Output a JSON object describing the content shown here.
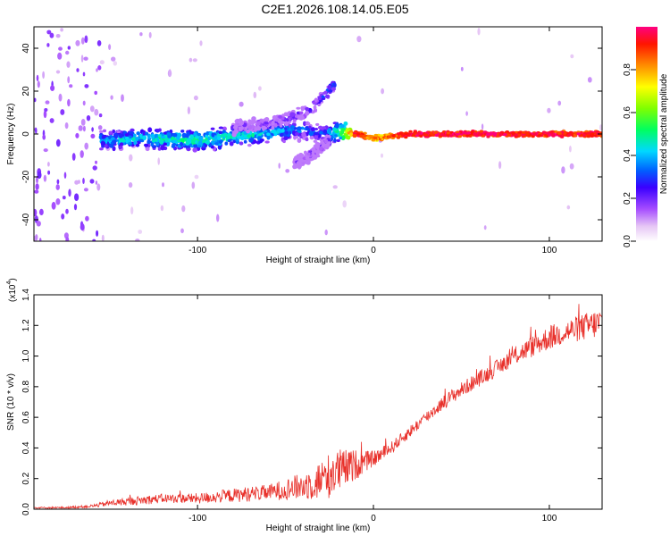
{
  "title": "C2E1.2026.108.14.05.E05",
  "chart_data": [
    {
      "type": "heatmap",
      "title": "C2E1.2026.108.14.05.E05",
      "xlabel": "Height of straight line (km)",
      "ylabel": "Frequency (Hz)",
      "xlim": [
        -193,
        130
      ],
      "ylim": [
        -50,
        50
      ],
      "xticks": [
        -100,
        0,
        100
      ],
      "xtick_labels": [
        "-100",
        "0",
        "100"
      ],
      "yticks": [
        -40,
        -20,
        0,
        20,
        40
      ],
      "ytick_labels": [
        "-40",
        "-20",
        "0",
        "20",
        "40"
      ],
      "colorbar": {
        "label": "Normalized spectral amplitude",
        "range": [
          0,
          1
        ],
        "ticks": [
          0.0,
          0.2,
          0.4,
          0.6,
          0.8
        ],
        "tick_labels": [
          "0.0",
          "0.2",
          "0.4",
          "0.6",
          "0.8"
        ]
      },
      "description_series": [
        {
          "name": "main band",
          "x": [
            -155,
            -130,
            -100,
            -75,
            -55,
            -40,
            -30,
            -20,
            -10,
            0,
            20,
            60,
            100,
            130
          ],
          "freq_center": [
            -3,
            -2,
            -3,
            -1,
            1,
            2,
            0,
            1,
            0,
            -2,
            0,
            0,
            0,
            0
          ],
          "amplitude": [
            0.4,
            0.45,
            0.5,
            0.45,
            0.4,
            0.35,
            0.3,
            0.5,
            0.95,
            0.8,
            0.98,
            0.97,
            0.96,
            0.95
          ]
        },
        {
          "name": "rising branch",
          "x": [
            -80,
            -60,
            -45,
            -35,
            -28,
            -22
          ],
          "freq_center": [
            3,
            5,
            8,
            12,
            18,
            24
          ],
          "amplitude": [
            0.15,
            0.18,
            0.2,
            0.22,
            0.25,
            0.3
          ]
        },
        {
          "name": "falling branch",
          "x": [
            -45,
            -40,
            -35,
            -30,
            -25
          ],
          "freq_center": [
            -14,
            -12,
            -9,
            -6,
            -3
          ],
          "amplitude": [
            0.15,
            0.15,
            0.18,
            0.2,
            0.2
          ]
        }
      ]
    },
    {
      "type": "line",
      "title": "",
      "xlabel": "Height of straight line (km)",
      "ylabel": "SNR (10 * v/v)",
      "y_multiplier_label": "(x10",
      "y_multiplier_exp": "4",
      "y_multiplier_close": ")",
      "xlim": [
        -193,
        130
      ],
      "ylim": [
        0,
        1.4
      ],
      "xticks": [
        -100,
        0,
        100
      ],
      "xtick_labels": [
        "-100",
        "0",
        "100"
      ],
      "yticks": [
        0,
        0.2,
        0.4,
        0.6,
        0.8,
        1.0,
        1.2,
        1.4
      ],
      "ytick_labels": [
        "0.0",
        "0.2",
        "0.4",
        "0.6",
        "0.8",
        "1.0",
        "1.2",
        "1.4"
      ],
      "color": "#e8302a",
      "series": [
        {
          "name": "SNR",
          "x": [
            -193,
            -175,
            -160,
            -150,
            -140,
            -130,
            -120,
            -110,
            -100,
            -90,
            -80,
            -70,
            -60,
            -50,
            -40,
            -35,
            -30,
            -25,
            -20,
            -15,
            -10,
            -5,
            0,
            5,
            10,
            20,
            30,
            40,
            50,
            60,
            70,
            80,
            90,
            100,
            110,
            120,
            130
          ],
          "y": [
            0.01,
            0.01,
            0.02,
            0.04,
            0.05,
            0.06,
            0.07,
            0.07,
            0.07,
            0.08,
            0.09,
            0.1,
            0.11,
            0.13,
            0.15,
            0.17,
            0.19,
            0.22,
            0.25,
            0.27,
            0.29,
            0.31,
            0.33,
            0.36,
            0.4,
            0.5,
            0.6,
            0.7,
            0.78,
            0.85,
            0.92,
            1.0,
            1.06,
            1.12,
            1.16,
            1.19,
            1.22
          ],
          "noise": [
            0.005,
            0.006,
            0.01,
            0.02,
            0.025,
            0.03,
            0.03,
            0.03,
            0.035,
            0.04,
            0.045,
            0.05,
            0.05,
            0.07,
            0.09,
            0.11,
            0.13,
            0.15,
            0.15,
            0.12,
            0.1,
            0.07,
            0.05,
            0.05,
            0.04,
            0.04,
            0.04,
            0.045,
            0.05,
            0.05,
            0.055,
            0.06,
            0.07,
            0.08,
            0.08,
            0.09,
            0.1
          ]
        }
      ]
    }
  ]
}
